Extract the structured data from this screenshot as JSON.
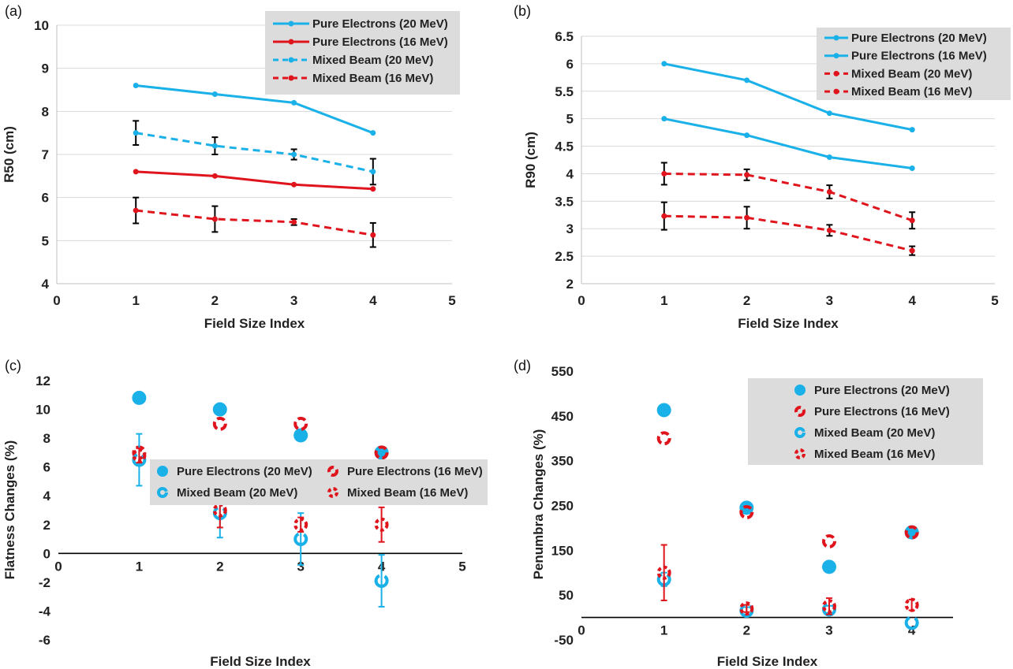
{
  "chart_data": [
    {
      "panel": "(a)",
      "type": "line",
      "xlabel": "Field Size Index",
      "ylabel": "R50 (cm)",
      "xlim": [
        0,
        5
      ],
      "ylim": [
        4,
        10
      ],
      "xticks": [
        "0",
        "1",
        "2",
        "3",
        "4",
        "5"
      ],
      "yticks": [
        "4",
        "5",
        "6",
        "7",
        "8",
        "9",
        "10"
      ],
      "legend": "top-right",
      "series": [
        {
          "name": "Pure Electrons (20 MeV)",
          "color": "#1ab0e8",
          "dash": false,
          "x": [
            1,
            2,
            3,
            4
          ],
          "y": [
            8.6,
            8.4,
            8.2,
            7.5
          ],
          "err": [
            0,
            0,
            0,
            0
          ]
        },
        {
          "name": "Pure Electrons (16 MeV)",
          "color": "#e0141c",
          "dash": false,
          "x": [
            1,
            2,
            3,
            4
          ],
          "y": [
            6.6,
            6.5,
            6.3,
            6.2
          ],
          "err": [
            0,
            0,
            0,
            0
          ]
        },
        {
          "name": "Mixed Beam (20 MeV)",
          "color": "#1ab0e8",
          "dash": true,
          "x": [
            1,
            2,
            3,
            4
          ],
          "y": [
            7.5,
            7.2,
            7.0,
            6.6
          ],
          "err": [
            0.28,
            0.2,
            0.12,
            0.3
          ]
        },
        {
          "name": "Mixed Beam (16 MeV)",
          "color": "#e0141c",
          "dash": true,
          "x": [
            1,
            2,
            3,
            4
          ],
          "y": [
            5.7,
            5.5,
            5.43,
            5.13
          ],
          "err": [
            0.3,
            0.3,
            0.07,
            0.28
          ]
        }
      ]
    },
    {
      "panel": "(b)",
      "type": "line",
      "xlabel": "Field Size Index",
      "ylabel": "R90 (cm)",
      "xlim": [
        0,
        5
      ],
      "ylim": [
        2,
        6.5
      ],
      "xticks": [
        "0",
        "1",
        "2",
        "3",
        "4",
        "5"
      ],
      "yticks": [
        "2",
        "2.5",
        "3",
        "3.5",
        "4",
        "4.5",
        "5",
        "5.5",
        "6",
        "6.5"
      ],
      "legend": "top-right",
      "series": [
        {
          "name": "Pure Electrons (20 MeV)",
          "color": "#1ab0e8",
          "dash": false,
          "x": [
            1,
            2,
            3,
            4
          ],
          "y": [
            6.0,
            5.7,
            5.1,
            4.8
          ],
          "err": [
            0,
            0,
            0,
            0
          ]
        },
        {
          "name": "Pure Electrons (16 MeV)",
          "color": "#1ab0e8",
          "dash": false,
          "x": [
            1,
            2,
            3,
            4
          ],
          "y": [
            5.0,
            4.7,
            4.3,
            4.1
          ],
          "err": [
            0,
            0,
            0,
            0
          ]
        },
        {
          "name": "Mixed Beam (20 MeV)",
          "color": "#e0141c",
          "dash": true,
          "x": [
            1,
            2,
            3,
            4
          ],
          "y": [
            4.0,
            3.98,
            3.67,
            3.15
          ],
          "err": [
            0.2,
            0.1,
            0.12,
            0.15
          ]
        },
        {
          "name": "Mixed Beam (16 MeV)",
          "color": "#e0141c",
          "dash": true,
          "x": [
            1,
            2,
            3,
            4
          ],
          "y": [
            3.23,
            3.2,
            2.97,
            2.6
          ],
          "err": [
            0.25,
            0.2,
            0.1,
            0.08
          ]
        }
      ]
    },
    {
      "panel": "(c)",
      "type": "scatter",
      "xlabel": "Field Size Index",
      "ylabel": "Flatness Changes (%)",
      "xlim": [
        0,
        5
      ],
      "ylim": [
        -6,
        12
      ],
      "xticks": [
        "0",
        "1",
        "2",
        "3",
        "4",
        "5"
      ],
      "yticks": [
        "-6",
        "-4",
        "-2",
        "0",
        "2",
        "4",
        "6",
        "8",
        "10",
        "12"
      ],
      "legend": "center",
      "series": [
        {
          "name": "Pure Electrons (20 MeV)",
          "color": "#1ab0e8",
          "style": "filled",
          "x": [
            1,
            2,
            3,
            4
          ],
          "y": [
            10.8,
            10.0,
            8.2,
            7.0
          ],
          "err": [
            0,
            0,
            0,
            0
          ]
        },
        {
          "name": "Pure Electrons (16 MeV)",
          "color": "#e0141c",
          "style": "dashring",
          "x": [
            1,
            2,
            3,
            4
          ],
          "y": [
            7.0,
            9.0,
            9.0,
            7.0
          ],
          "err": [
            0,
            0,
            0,
            0
          ]
        },
        {
          "name": "Mixed Beam (20 MeV)",
          "color": "#1ab0e8",
          "style": "ring",
          "x": [
            1,
            2,
            3,
            4
          ],
          "y": [
            6.5,
            2.8,
            1.0,
            -1.9
          ],
          "err": [
            1.8,
            1.7,
            1.8,
            1.8
          ]
        },
        {
          "name": "Mixed Beam (16 MeV)",
          "color": "#e0141c",
          "style": "dotring",
          "x": [
            1,
            2,
            3,
            4
          ],
          "y": [
            6.8,
            3.0,
            2.0,
            2.0
          ],
          "err": [
            0.5,
            1.2,
            0.5,
            1.2
          ]
        }
      ]
    },
    {
      "panel": "(d)",
      "type": "scatter",
      "xlabel": "Field Size Index",
      "ylabel": "Penumbra Changes (%)",
      "xlim": [
        0,
        4.5
      ],
      "ylim": [
        -50,
        550
      ],
      "xticks": [
        "0",
        "1",
        "2",
        "3",
        "4"
      ],
      "yticks": [
        "-50",
        "50",
        "150",
        "250",
        "350",
        "450",
        "550"
      ],
      "legend": "top-right",
      "series": [
        {
          "name": "Pure Electrons (20 MeV)",
          "color": "#1ab0e8",
          "style": "filled",
          "x": [
            1,
            2,
            3,
            4
          ],
          "y": [
            463,
            245,
            113,
            190
          ],
          "err": [
            0,
            0,
            0,
            0
          ]
        },
        {
          "name": "Pure Electrons (16 MeV)",
          "color": "#e0141c",
          "style": "dashring",
          "x": [
            1,
            2,
            3,
            4
          ],
          "y": [
            400,
            235,
            170,
            190
          ],
          "err": [
            0,
            0,
            0,
            0
          ]
        },
        {
          "name": "Mixed Beam (20 MeV)",
          "color": "#1ab0e8",
          "style": "ring",
          "x": [
            1,
            2,
            3,
            4
          ],
          "y": [
            85,
            15,
            18,
            -12
          ],
          "err": [
            15,
            8,
            8,
            0
          ]
        },
        {
          "name": "Mixed Beam (16 MeV)",
          "color": "#e0141c",
          "style": "dotring",
          "x": [
            1,
            2,
            3,
            4
          ],
          "y": [
            100,
            20,
            25,
            28
          ],
          "err": [
            62,
            8,
            18,
            12
          ]
        }
      ]
    }
  ]
}
